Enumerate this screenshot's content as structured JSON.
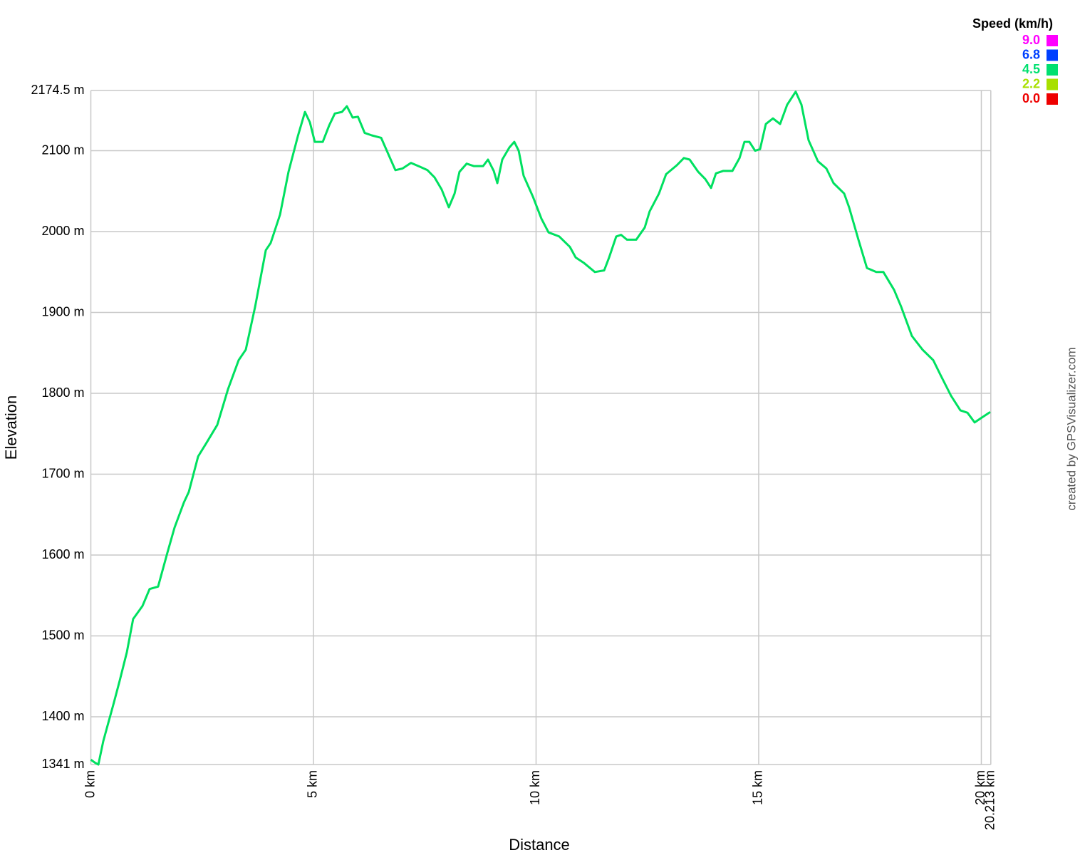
{
  "chart_data": {
    "type": "line",
    "x_label": "Distance",
    "y_label": "Elevation",
    "credit": "created by GPSVisualizer.com",
    "xlim": [
      0,
      20.213
    ],
    "ylim": [
      1341,
      2174.5
    ],
    "grid": true,
    "xticks": [
      {
        "value": 0,
        "label": "0 km"
      },
      {
        "value": 5,
        "label": "5 km"
      },
      {
        "value": 10,
        "label": "10 km"
      },
      {
        "value": 15,
        "label": "15 km"
      },
      {
        "value": 20,
        "label": "20 km"
      },
      {
        "value": 20.213,
        "label": "20.213 km"
      }
    ],
    "yticks": [
      {
        "value": 1341,
        "label": "1341 m"
      },
      {
        "value": 1400,
        "label": "1400 m"
      },
      {
        "value": 1500,
        "label": "1500 m"
      },
      {
        "value": 1600,
        "label": "1600 m"
      },
      {
        "value": 1700,
        "label": "1700 m"
      },
      {
        "value": 1800,
        "label": "1800 m"
      },
      {
        "value": 1900,
        "label": "1900 m"
      },
      {
        "value": 2000,
        "label": "2000 m"
      },
      {
        "value": 2100,
        "label": "2100 m"
      },
      {
        "value": 2174.5,
        "label": "2174.5 m"
      }
    ],
    "legend": {
      "title": "Speed (km/h)",
      "position": "top-right",
      "items": [
        {
          "value": 9,
          "label": "9.0",
          "color": "#ff00ff"
        },
        {
          "value": 6.8,
          "label": "6.8",
          "color": "#0040ff"
        },
        {
          "value": 4.5,
          "label": "4.5",
          "color": "#00e070"
        },
        {
          "value": 2.2,
          "label": "2.2",
          "color": "#a8e000"
        },
        {
          "value": 0,
          "label": "0.0",
          "color": "#ee0000"
        }
      ]
    },
    "x": [
      0,
      0.1,
      0.17,
      0.28,
      0.36,
      0.52,
      0.65,
      0.81,
      0.95,
      1.16,
      1.32,
      1.51,
      1.72,
      1.88,
      2.09,
      2.2,
      2.41,
      2.6,
      2.84,
      3.08,
      3.32,
      3.48,
      3.69,
      3.93,
      4.04,
      4.25,
      4.44,
      4.65,
      4.81,
      4.92,
      5.03,
      5.21,
      5.35,
      5.48,
      5.64,
      5.75,
      5.88,
      6.0,
      6.15,
      6.31,
      6.52,
      6.68,
      6.84,
      7.0,
      7.19,
      7.4,
      7.56,
      7.72,
      7.88,
      8.04,
      8.17,
      8.28,
      8.44,
      8.6,
      8.81,
      8.92,
      9.05,
      9.13,
      9.24,
      9.4,
      9.51,
      9.61,
      9.72,
      9.93,
      10.12,
      10.28,
      10.52,
      10.76,
      10.89,
      11.08,
      11.32,
      11.53,
      11.64,
      11.8,
      11.91,
      12.04,
      12.25,
      12.44,
      12.55,
      12.76,
      12.92,
      13.16,
      13.32,
      13.45,
      13.64,
      13.8,
      13.93,
      14.04,
      14.2,
      14.41,
      14.57,
      14.68,
      14.79,
      14.92,
      15.03,
      15.16,
      15.32,
      15.48,
      15.64,
      15.83,
      15.96,
      16.12,
      16.33,
      16.52,
      16.68,
      16.92,
      17.03,
      17.24,
      17.43,
      17.64,
      17.8,
      18.04,
      18.2,
      18.44,
      18.68,
      18.92,
      19.08,
      19.32,
      19.53,
      19.69,
      19.85,
      20.01,
      20.2
    ],
    "series": [
      {
        "color": "#00e060",
        "values": [
          1347,
          1343,
          1341,
          1370,
          1386,
          1418,
          1445,
          1480,
          1521,
          1537,
          1558,
          1561,
          1603,
          1634,
          1665,
          1678,
          1722,
          1739,
          1761,
          1805,
          1841,
          1854,
          1907,
          1977,
          1986,
          2021,
          2074,
          2118,
          2148,
          2135,
          2111,
          2111,
          2131,
          2146,
          2148,
          2155,
          2141,
          2142,
          2122,
          2119,
          2116,
          2096,
          2076,
          2078,
          2085,
          2080,
          2076,
          2067,
          2052,
          2030,
          2047,
          2074,
          2084,
          2081,
          2081,
          2089,
          2075,
          2060,
          2089,
          2104,
          2111,
          2100,
          2069,
          2043,
          2016,
          1999,
          1994,
          1981,
          1968,
          1961,
          1950,
          1952,
          1968,
          1994,
          1996,
          1990,
          1990,
          2005,
          2025,
          2047,
          2071,
          2082,
          2091,
          2089,
          2074,
          2065,
          2054,
          2072,
          2075,
          2075,
          2091,
          2111,
          2111,
          2100,
          2102,
          2133,
          2140,
          2133,
          2157,
          2173,
          2157,
          2113,
          2087,
          2078,
          2060,
          2047,
          2030,
          1990,
          1955,
          1950,
          1950,
          1928,
          1907,
          1871,
          1854,
          1841,
          1823,
          1797,
          1779,
          1776,
          1764,
          1770,
          1777
        ]
      }
    ]
  }
}
